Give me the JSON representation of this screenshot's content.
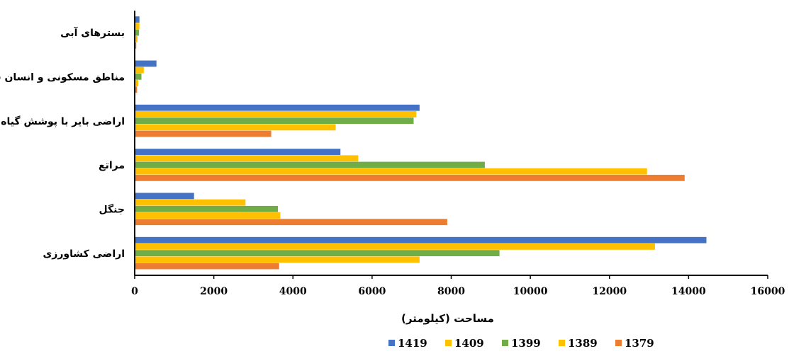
{
  "chart_data": {
    "type": "bar",
    "orientation": "horizontal",
    "title": "",
    "xlabel": "مساحت (کیلومتر)",
    "ylabel": "",
    "xlim": [
      0,
      16000
    ],
    "xticks": [
      "0",
      "2000",
      "4000",
      "6000",
      "8000",
      "10000",
      "12000",
      "14000",
      "16000"
    ],
    "grid": false,
    "legend_position": "bottom",
    "categories": [
      "بسترهای آبی",
      "مناطق مسکونی و انسان س",
      "اراضی بایر با پوشش گیاه",
      "مراتع",
      "جنگل",
      "اراضی کشاورزی"
    ],
    "series": [
      {
        "name": "1419",
        "color": "#4472C4",
        "values": [
          120,
          550,
          7200,
          5200,
          1500,
          14450
        ]
      },
      {
        "name": "1409",
        "color": "#FFC000",
        "values": [
          120,
          230,
          7120,
          5650,
          2800,
          13150
        ]
      },
      {
        "name": "1399",
        "color": "#70AD47",
        "values": [
          110,
          170,
          7050,
          8850,
          3620,
          9220
        ]
      },
      {
        "name": "1389",
        "color": "#FFC000",
        "values": [
          70,
          90,
          5080,
          12950,
          3680,
          7200
        ]
      },
      {
        "name": "1379",
        "color": "#ED7D31",
        "values": [
          40,
          60,
          3450,
          13900,
          7900,
          3650
        ]
      }
    ],
    "legend_order": [
      "1419",
      "1409",
      "1399",
      "1389",
      "1379"
    ]
  }
}
